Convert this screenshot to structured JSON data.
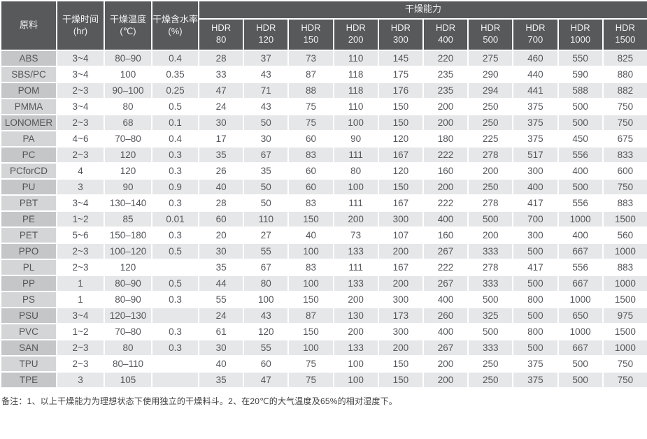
{
  "header": {
    "material": "原料",
    "time_label": "干燥时间",
    "time_unit": "(hr)",
    "temp_label": "干燥温度",
    "temp_unit": "(℃)",
    "moisture_label": "干燥含水率",
    "moisture_unit": "(%)",
    "capacity_group": "干燥能力",
    "hdr_models": [
      {
        "brand": "HDR",
        "size": "80"
      },
      {
        "brand": "HDR",
        "size": "120"
      },
      {
        "brand": "HDR",
        "size": "150"
      },
      {
        "brand": "HDR",
        "size": "200"
      },
      {
        "brand": "HDR",
        "size": "300"
      },
      {
        "brand": "HDR",
        "size": "400"
      },
      {
        "brand": "HDR",
        "size": "500"
      },
      {
        "brand": "HDR",
        "size": "700"
      },
      {
        "brand": "HDR",
        "size": "1000"
      },
      {
        "brand": "HDR",
        "size": "1500"
      }
    ]
  },
  "rows": [
    {
      "material": "ABS",
      "time": "3~4",
      "temp": "80–90",
      "moisture": "0.4",
      "capacity": [
        28,
        37,
        73,
        110,
        145,
        220,
        275,
        460,
        550,
        825
      ]
    },
    {
      "material": "SBS/PC",
      "time": "3~4",
      "temp": "100",
      "moisture": "0.35",
      "capacity": [
        33,
        43,
        87,
        118,
        175,
        235,
        290,
        440,
        590,
        880
      ]
    },
    {
      "material": "POM",
      "time": "2~3",
      "temp": "90–100",
      "moisture": "0.25",
      "capacity": [
        47,
        71,
        88,
        118,
        176,
        235,
        294,
        441,
        588,
        882
      ]
    },
    {
      "material": "PMMA",
      "time": "3~4",
      "temp": "80",
      "moisture": "0.5",
      "capacity": [
        24,
        43,
        75,
        110,
        150,
        200,
        250,
        375,
        500,
        750
      ]
    },
    {
      "material": "LONOMER",
      "time": "2~3",
      "temp": "68",
      "moisture": "0.1",
      "capacity": [
        30,
        50,
        75,
        100,
        150,
        200,
        250,
        375,
        500,
        750
      ]
    },
    {
      "material": "PA",
      "time": "4~6",
      "temp": "70–80",
      "moisture": "0.4",
      "capacity": [
        17,
        30,
        60,
        90,
        120,
        180,
        225,
        375,
        450,
        675
      ]
    },
    {
      "material": "PC",
      "time": "2~3",
      "temp": "120",
      "moisture": "0.3",
      "capacity": [
        35,
        67,
        83,
        111,
        167,
        222,
        278,
        517,
        556,
        833
      ]
    },
    {
      "material": "PCforCD",
      "time": "4",
      "temp": "120",
      "moisture": "0.3",
      "capacity": [
        26,
        35,
        60,
        80,
        120,
        160,
        200,
        300,
        400,
        600
      ]
    },
    {
      "material": "PU",
      "time": "3",
      "temp": "90",
      "moisture": "0.9",
      "capacity": [
        40,
        50,
        60,
        100,
        150,
        200,
        250,
        400,
        500,
        750
      ]
    },
    {
      "material": "PBT",
      "time": "3~4",
      "temp": "130–140",
      "moisture": "0.3",
      "capacity": [
        28,
        50,
        83,
        111,
        167,
        222,
        278,
        417,
        556,
        883
      ]
    },
    {
      "material": "PE",
      "time": "1~2",
      "temp": "85",
      "moisture": "0.01",
      "capacity": [
        60,
        110,
        150,
        200,
        300,
        400,
        500,
        700,
        1000,
        1500
      ]
    },
    {
      "material": "PET",
      "time": "5~6",
      "temp": "150–180",
      "moisture": "0.3",
      "capacity": [
        20,
        27,
        40,
        73,
        107,
        160,
        200,
        300,
        400,
        560
      ]
    },
    {
      "material": "PPO",
      "time": "2~3",
      "temp": "100–120",
      "moisture": "0.5",
      "capacity": [
        30,
        55,
        100,
        133,
        200,
        267,
        333,
        500,
        667,
        1000
      ]
    },
    {
      "material": "PL",
      "time": "2~3",
      "temp": "120",
      "moisture": "",
      "capacity": [
        35,
        67,
        83,
        111,
        167,
        222,
        278,
        417,
        556,
        883
      ]
    },
    {
      "material": "PP",
      "time": "1",
      "temp": "80–90",
      "moisture": "0.5",
      "capacity": [
        44,
        80,
        100,
        133,
        200,
        267,
        333,
        500,
        667,
        1000
      ]
    },
    {
      "material": "PS",
      "time": "1",
      "temp": "80–90",
      "moisture": "0.3",
      "capacity": [
        55,
        100,
        150,
        200,
        300,
        400,
        500,
        800,
        1000,
        1500
      ]
    },
    {
      "material": "PSU",
      "time": "3~4",
      "temp": "120–130",
      "moisture": "",
      "capacity": [
        24,
        43,
        87,
        130,
        173,
        260,
        325,
        500,
        650,
        975
      ]
    },
    {
      "material": "PVC",
      "time": "1~2",
      "temp": "70–80",
      "moisture": "0.3",
      "capacity": [
        61,
        120,
        150,
        200,
        300,
        400,
        500,
        800,
        1000,
        1500
      ]
    },
    {
      "material": "SAN",
      "time": "2~3",
      "temp": "80",
      "moisture": "0.3",
      "capacity": [
        30,
        55,
        100,
        133,
        200,
        267,
        333,
        500,
        667,
        1000
      ]
    },
    {
      "material": "TPU",
      "time": "2~3",
      "temp": "80–110",
      "moisture": "",
      "capacity": [
        40,
        60,
        75,
        100,
        150,
        200,
        250,
        375,
        500,
        750
      ]
    },
    {
      "material": "TPE",
      "time": "3",
      "temp": "105",
      "moisture": "",
      "capacity": [
        35,
        47,
        75,
        100,
        150,
        200,
        250,
        375,
        500,
        750
      ]
    }
  ],
  "footnote": "备注：1、以上干燥能力为理想状态下使用独立的干燥料斗。2、在20℃的大气温度及65%的相对湿度下。",
  "colors": {
    "header_bg": "#58595b",
    "header_text": "#f1f2f2",
    "row_odd_bg": "#e6e7e9",
    "row_even_bg": "#ffffff",
    "material_odd_bg": "#c4c6c8",
    "material_even_bg": "#d3d5d6",
    "body_text": "#55565a"
  }
}
